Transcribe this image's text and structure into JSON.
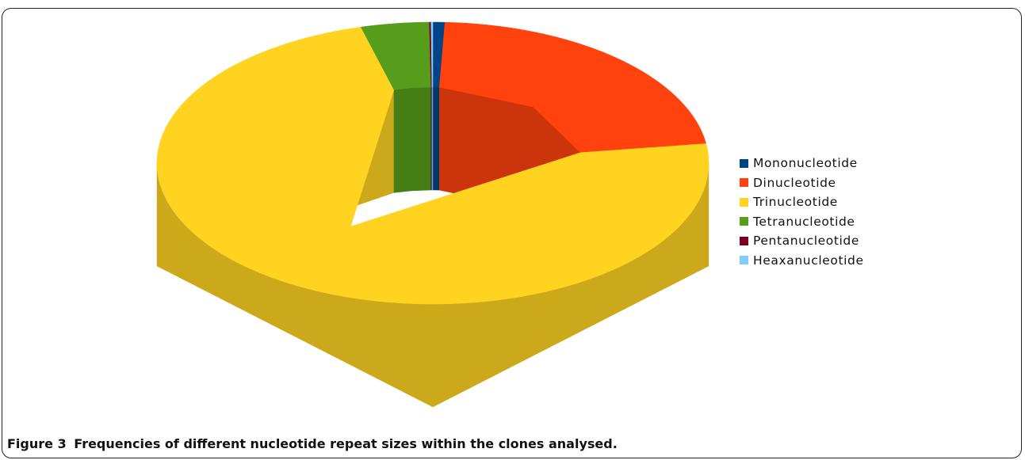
{
  "caption": {
    "label": "Figure 3",
    "text": "Frequencies of different nucleotide repeat sizes within the clones analysed."
  },
  "chart_data": {
    "type": "pie",
    "style": "3d-donut",
    "categories": [
      "Mononucleotide",
      "Dinucleotide",
      "Trinucleotide",
      "Tetranucleotide",
      "Pentanucleotide",
      "Heaxanucleotide"
    ],
    "values": [
      0.7,
      22.1,
      73.0,
      4.0,
      0.1,
      0.1
    ],
    "colors": [
      "#004586",
      "#ff420e",
      "#ffd320",
      "#579d1c",
      "#7e0021",
      "#83caff"
    ],
    "legend_position": "right"
  }
}
